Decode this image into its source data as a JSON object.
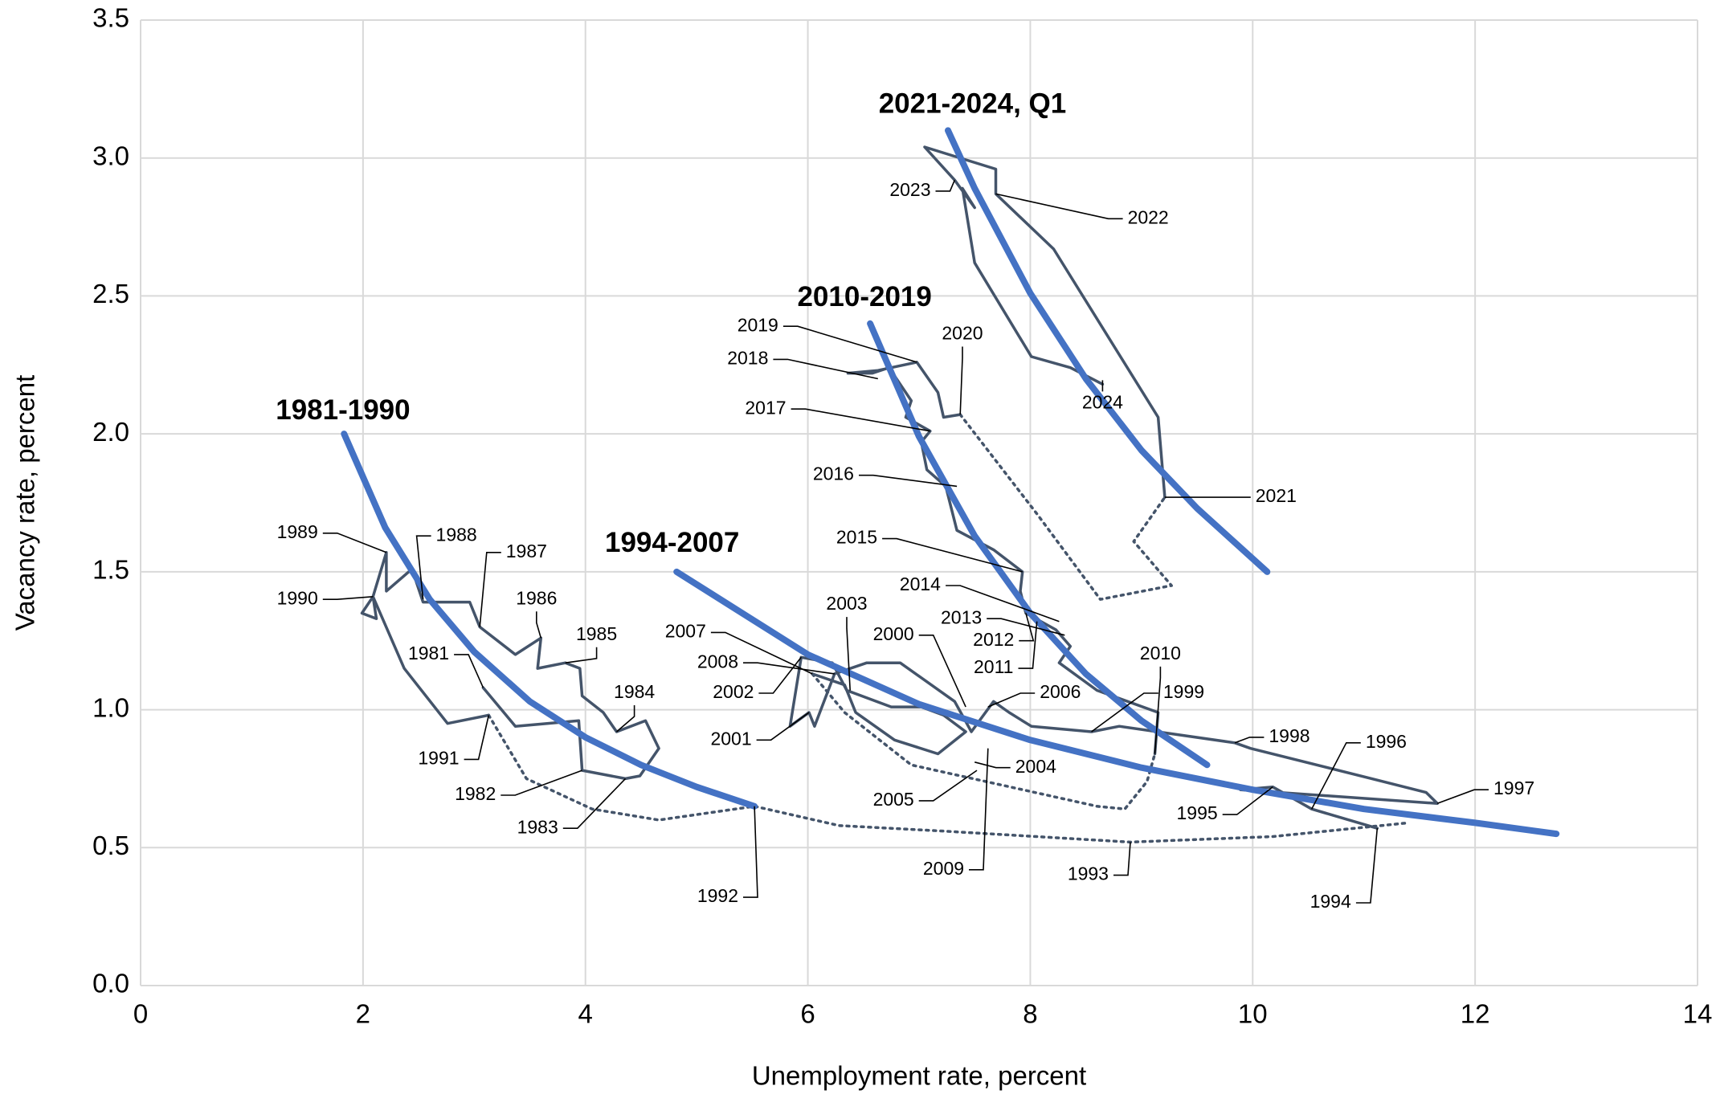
{
  "chart_data": {
    "type": "line",
    "x_label": "Unemployment rate, percent",
    "y_label": "Vacancy rate, percent",
    "xlim": [
      0,
      14
    ],
    "ylim": [
      0,
      3.5
    ],
    "xticks": [
      0,
      2,
      4,
      6,
      8,
      10,
      12,
      14
    ],
    "yticks": [
      {
        "value": 0,
        "label": "0.0"
      },
      0.5,
      {
        "value": 1,
        "label": "1.0"
      },
      1.5,
      {
        "value": 2,
        "label": "2.0"
      },
      2.5,
      {
        "value": 3,
        "label": "3.0"
      },
      3.5
    ],
    "grid": true,
    "series": [
      {
        "color": "#44546a",
        "style": "solid",
        "x": [
          3.08,
          3.37,
          3.94,
          3.97,
          4.36,
          4.49,
          4.66,
          4.54,
          4.28,
          4.16,
          3.97,
          3.95,
          3.82,
          3.57,
          3.6,
          3.37,
          3.05,
          2.96,
          2.54,
          2.44,
          2.21,
          2.21,
          2.09,
          2.12,
          1.99,
          2.09,
          2.37,
          2.76,
          3.13
        ],
        "y": [
          1.08,
          0.94,
          0.96,
          0.78,
          0.75,
          0.76,
          0.86,
          0.96,
          0.92,
          0.99,
          1.05,
          1.15,
          1.17,
          1.15,
          1.26,
          1.2,
          1.3,
          1.39,
          1.39,
          1.51,
          1.43,
          1.57,
          1.41,
          1.33,
          1.35,
          1.41,
          1.15,
          0.95,
          0.98
        ]
      },
      {
        "color": "#44546a",
        "style": "dotted",
        "x": [
          3.13,
          3.47,
          4.06,
          4.66,
          5.52,
          6.28,
          7.22,
          8.9,
          10.18,
          11.4
        ],
        "y": [
          0.98,
          0.75,
          0.64,
          0.6,
          0.65,
          0.58,
          0.56,
          0.52,
          0.54,
          0.59
        ]
      },
      {
        "color": "#44546a",
        "style": "solid",
        "x": [
          11.12,
          10.53,
          10.18,
          9.89,
          11.66,
          11.56,
          11.07,
          9.98,
          9.84,
          8.8,
          8.55,
          8.01,
          7.81,
          7.67,
          7.47,
          7.32,
          6.83,
          6.53,
          6.24,
          6.06,
          6.01,
          5.84,
          5.94,
          6.22,
          6.35,
          6.75,
          7.02,
          7.22,
          7.42,
          7.17,
          6.78,
          6.43,
          6.33,
          6.04
        ],
        "y": [
          0.57,
          0.64,
          0.72,
          0.71,
          0.66,
          0.7,
          0.75,
          0.86,
          0.88,
          0.94,
          0.92,
          0.94,
          0.99,
          1.03,
          0.92,
          1.03,
          1.17,
          1.17,
          1.13,
          0.94,
          0.99,
          0.94,
          1.19,
          1.17,
          1.07,
          1.01,
          1.01,
          0.98,
          0.92,
          0.84,
          0.89,
          0.99,
          1.09,
          1.13
        ]
      },
      {
        "color": "#44546a",
        "style": "dotted",
        "x": [
          6.04,
          6.33,
          6.93,
          8.6,
          8.85,
          9.05,
          9.12
        ],
        "y": [
          1.13,
          0.99,
          0.8,
          0.65,
          0.64,
          0.74,
          0.84
        ]
      },
      {
        "color": "#44546a",
        "style": "solid",
        "x": [
          9.12,
          9.15,
          8.6,
          8.26,
          8.36,
          8.23,
          7.96,
          7.91,
          7.93,
          7.67,
          7.34,
          7.24,
          7.07,
          7.02,
          7.1,
          6.88,
          6.93,
          6.73,
          6.58,
          6.36,
          6.63,
          6.98,
          7.17,
          7.22,
          7.37
        ],
        "y": [
          0.84,
          0.99,
          1.07,
          1.17,
          1.23,
          1.29,
          1.35,
          1.43,
          1.5,
          1.58,
          1.65,
          1.81,
          1.87,
          1.97,
          2.01,
          2.06,
          2.12,
          2.24,
          2.22,
          2.22,
          2.23,
          2.26,
          2.15,
          2.06,
          2.07
        ]
      },
      {
        "color": "#44546a",
        "style": "dotted",
        "x": [
          7.37,
          8.06,
          8.63,
          9.27,
          8.93,
          9.21
        ],
        "y": [
          2.07,
          1.71,
          1.4,
          1.45,
          1.61,
          1.77
        ]
      },
      {
        "color": "#44546a",
        "style": "solid",
        "x": [
          9.21,
          9.15,
          8.21,
          7.69,
          7.69,
          7.05,
          7.32,
          7.5,
          7.39,
          7.5,
          8.01,
          8.36,
          8.65
        ],
        "y": [
          1.77,
          2.06,
          2.67,
          2.87,
          2.96,
          3.04,
          2.92,
          2.82,
          2.89,
          2.62,
          2.28,
          2.24,
          2.18
        ]
      },
      {
        "color": "#4472c4",
        "style": "thick",
        "x": [
          1.83,
          2.2,
          2.6,
          3.0,
          3.5,
          4.0,
          4.5,
          5.0,
          5.52
        ],
        "y": [
          2.0,
          1.66,
          1.4,
          1.21,
          1.03,
          0.9,
          0.8,
          0.72,
          0.65
        ]
      },
      {
        "color": "#4472c4",
        "style": "thick",
        "x": [
          4.82,
          6,
          7,
          8,
          9,
          10,
          11,
          12,
          12.73
        ],
        "y": [
          1.5,
          1.2,
          1.02,
          0.89,
          0.79,
          0.71,
          0.64,
          0.59,
          0.55
        ]
      },
      {
        "color": "#4472c4",
        "style": "thick",
        "x": [
          6.56,
          7,
          7.5,
          8,
          8.5,
          9,
          9.59
        ],
        "y": [
          2.4,
          1.99,
          1.63,
          1.35,
          1.13,
          0.96,
          0.8
        ]
      },
      {
        "color": "#4472c4",
        "style": "thick",
        "x": [
          7.26,
          7.5,
          8,
          8.5,
          9,
          9.5,
          10.13
        ],
        "y": [
          3.1,
          2.89,
          2.51,
          2.2,
          1.94,
          1.73,
          1.5
        ]
      }
    ],
    "curve_labels": [
      {
        "text": "1981-1990",
        "x": 1.82,
        "y": 2.08
      },
      {
        "text": "1994-2007",
        "x": 4.78,
        "y": 1.6
      },
      {
        "text": "2010-2019",
        "x": 6.51,
        "y": 2.49
      },
      {
        "text": "2021-2024, Q1",
        "x": 7.48,
        "y": 3.19
      }
    ],
    "annotations": [
      {
        "text": "1989",
        "tx": 1.41,
        "ty": 1.64,
        "x": 2.21,
        "y": 1.57
      },
      {
        "text": "1988",
        "tx": 2.84,
        "ty": 1.63,
        "x": 2.54,
        "y": 1.4
      },
      {
        "text": "1987",
        "tx": 3.47,
        "ty": 1.57,
        "x": 3.05,
        "y": 1.3
      },
      {
        "text": "1986",
        "tx": 3.56,
        "ty": 1.4,
        "x": 3.6,
        "y": 1.26
      },
      {
        "text": "1985",
        "tx": 4.1,
        "ty": 1.27,
        "x": 3.82,
        "y": 1.17
      },
      {
        "text": "1984",
        "tx": 4.44,
        "ty": 1.06,
        "x": 4.28,
        "y": 0.92
      },
      {
        "text": "1981",
        "tx": 2.59,
        "ty": 1.2,
        "x": 3.08,
        "y": 1.08
      },
      {
        "text": "1990",
        "tx": 1.41,
        "ty": 1.4,
        "x": 2.09,
        "y": 1.41
      },
      {
        "text": "1991",
        "tx": 2.68,
        "ty": 0.82,
        "x": 3.13,
        "y": 0.98
      },
      {
        "text": "1982",
        "tx": 3.01,
        "ty": 0.69,
        "x": 3.97,
        "y": 0.78
      },
      {
        "text": "1983",
        "tx": 3.57,
        "ty": 0.57,
        "x": 4.36,
        "y": 0.75
      },
      {
        "text": "1992",
        "tx": 5.19,
        "ty": 0.32,
        "x": 5.52,
        "y": 0.65
      },
      {
        "text": "2007",
        "tx": 4.9,
        "ty": 1.28,
        "x": 6.04,
        "y": 1.13
      },
      {
        "text": "2008",
        "tx": 5.19,
        "ty": 1.17,
        "x": 6.24,
        "y": 1.13
      },
      {
        "text": "2002",
        "tx": 5.33,
        "ty": 1.06,
        "x": 5.94,
        "y": 1.19
      },
      {
        "text": "2001",
        "tx": 5.31,
        "ty": 0.89,
        "x": 6.01,
        "y": 0.99
      },
      {
        "text": "2003",
        "tx": 6.35,
        "ty": 1.38,
        "x": 6.38,
        "y": 1.07
      },
      {
        "text": "2000",
        "tx": 6.77,
        "ty": 1.27,
        "x": 7.42,
        "y": 1.01
      },
      {
        "text": "2005",
        "tx": 6.77,
        "ty": 0.67,
        "x": 7.52,
        "y": 0.78
      },
      {
        "text": "2009",
        "tx": 7.22,
        "ty": 0.42,
        "x": 7.62,
        "y": 0.86
      },
      {
        "text": "2004",
        "tx": 8.05,
        "ty": 0.79,
        "x": 7.5,
        "y": 0.81
      },
      {
        "text": "2006",
        "tx": 8.27,
        "ty": 1.06,
        "x": 7.62,
        "y": 1.01
      },
      {
        "text": "2010",
        "tx": 9.17,
        "ty": 1.2,
        "x": 9.12,
        "y": 0.84
      },
      {
        "text": "1999",
        "tx": 9.38,
        "ty": 1.06,
        "x": 8.55,
        "y": 0.92
      },
      {
        "text": "1998",
        "tx": 10.33,
        "ty": 0.9,
        "x": 9.84,
        "y": 0.88
      },
      {
        "text": "1996",
        "tx": 11.2,
        "ty": 0.88,
        "x": 10.53,
        "y": 0.64
      },
      {
        "text": "1997",
        "tx": 12.35,
        "ty": 0.71,
        "x": 11.66,
        "y": 0.66
      },
      {
        "text": "1995",
        "tx": 9.5,
        "ty": 0.62,
        "x": 10.18,
        "y": 0.72
      },
      {
        "text": "1993",
        "tx": 8.52,
        "ty": 0.4,
        "x": 8.9,
        "y": 0.52
      },
      {
        "text": "1994",
        "tx": 10.7,
        "ty": 0.3,
        "x": 11.12,
        "y": 0.57
      },
      {
        "text": "2011",
        "tx": 7.67,
        "ty": 1.15,
        "x": 8.06,
        "y": 1.32
      },
      {
        "text": "2012",
        "tx": 7.67,
        "ty": 1.25,
        "x": 7.96,
        "y": 1.35
      },
      {
        "text": "2013",
        "tx": 7.38,
        "ty": 1.33,
        "x": 8.31,
        "y": 1.27
      },
      {
        "text": "2014",
        "tx": 7.01,
        "ty": 1.45,
        "x": 8.26,
        "y": 1.32
      },
      {
        "text": "2015",
        "tx": 6.44,
        "ty": 1.62,
        "x": 7.93,
        "y": 1.5
      },
      {
        "text": "2016",
        "tx": 6.23,
        "ty": 1.85,
        "x": 7.34,
        "y": 1.81
      },
      {
        "text": "2017",
        "tx": 5.62,
        "ty": 2.09,
        "x": 7.1,
        "y": 2.01
      },
      {
        "text": "2018",
        "tx": 5.46,
        "ty": 2.27,
        "x": 6.63,
        "y": 2.2
      },
      {
        "text": "2019",
        "tx": 5.55,
        "ty": 2.39,
        "x": 6.98,
        "y": 2.26
      },
      {
        "text": "2020",
        "tx": 7.39,
        "ty": 2.36,
        "x": 7.37,
        "y": 2.07
      },
      {
        "text": "2021",
        "tx": 10.21,
        "ty": 1.77,
        "x": 9.21,
        "y": 1.77
      },
      {
        "text": "2022",
        "tx": 9.06,
        "ty": 2.78,
        "x": 7.69,
        "y": 2.87
      },
      {
        "text": "2023",
        "tx": 6.92,
        "ty": 2.88,
        "x": 7.32,
        "y": 2.92
      },
      {
        "text": "2024",
        "tx": 8.65,
        "ty": 2.11,
        "x": 8.65,
        "y": 2.18
      }
    ]
  }
}
